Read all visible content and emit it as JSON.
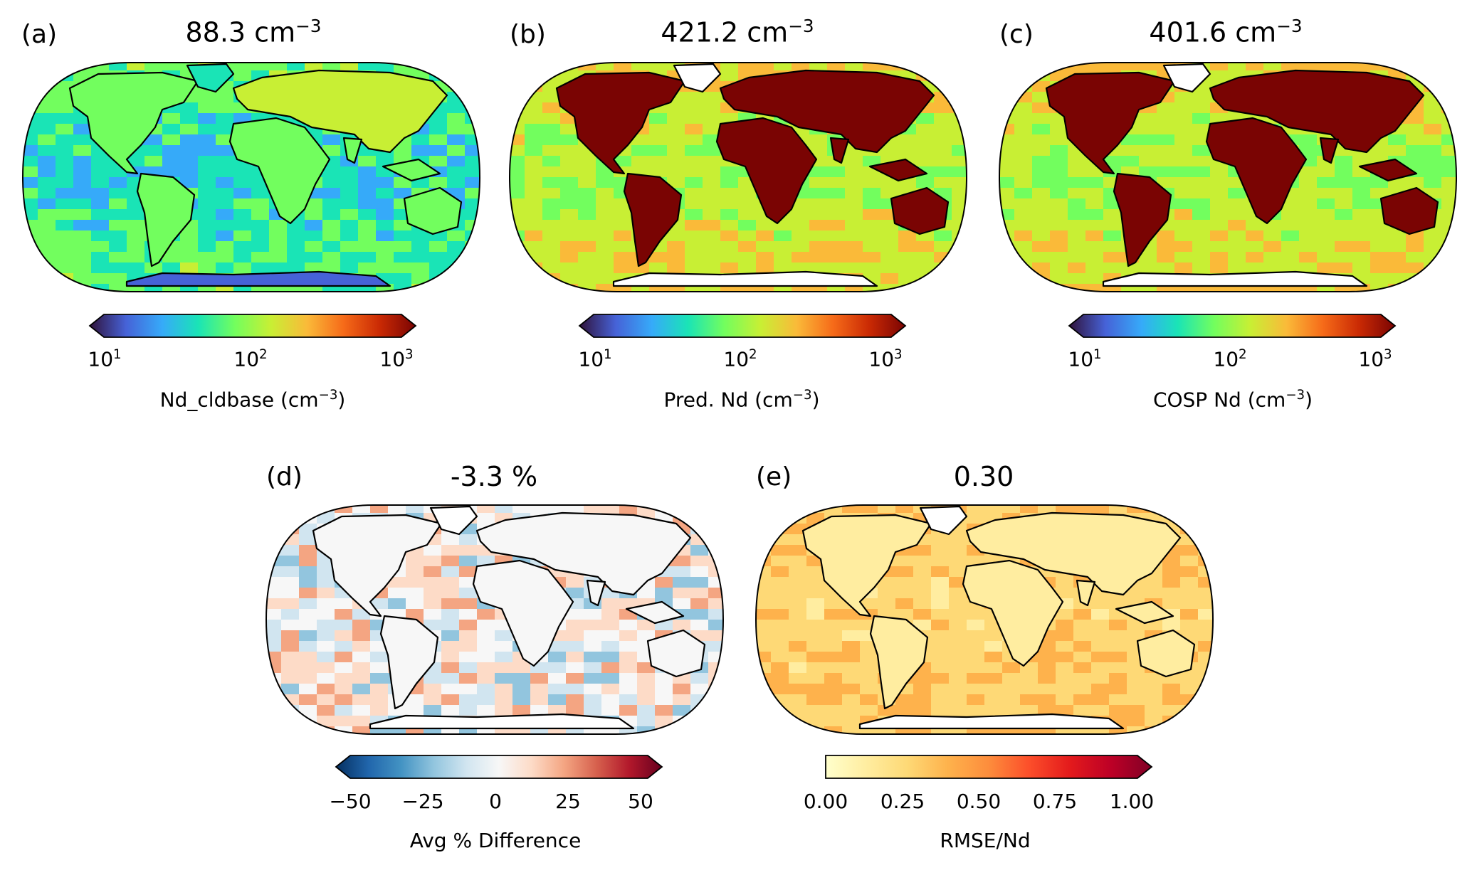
{
  "panels": [
    {
      "label": "(a)",
      "title": "88.3 cm",
      "title_sup": "−3",
      "colorbar_label": "Nd_cldbase (cm",
      "colorbar_label_sup": "−3",
      "colorbar_label_end": ")",
      "ticks": [
        "10",
        "10",
        "10"
      ],
      "tick_sups": [
        "1",
        "2",
        "3"
      ],
      "colormap": "turbo",
      "scale": "log"
    },
    {
      "label": "(b)",
      "title": "421.2 cm",
      "title_sup": "−3",
      "colorbar_label": "Pred. Nd (cm",
      "colorbar_label_sup": "−3",
      "colorbar_label_end": ")",
      "ticks": [
        "10",
        "10",
        "10"
      ],
      "tick_sups": [
        "1",
        "2",
        "3"
      ],
      "colormap": "turbo",
      "scale": "log"
    },
    {
      "label": "(c)",
      "title": "401.6 cm",
      "title_sup": "−3",
      "colorbar_label": "COSP Nd (cm",
      "colorbar_label_sup": "−3",
      "colorbar_label_end": ")",
      "ticks": [
        "10",
        "10",
        "10"
      ],
      "tick_sups": [
        "1",
        "2",
        "3"
      ],
      "colormap": "turbo",
      "scale": "log"
    },
    {
      "label": "(d)",
      "title": "-3.3 %",
      "colorbar_label": "Avg % Difference",
      "ticks": [
        "−50",
        "−25",
        "0",
        "25",
        "50"
      ],
      "colormap": "RdBu_r",
      "range": [
        -50,
        50
      ]
    },
    {
      "label": "(e)",
      "title": "0.30",
      "colorbar_label": "RMSE/Nd",
      "ticks": [
        "0.00",
        "0.25",
        "0.50",
        "0.75",
        "1.00"
      ],
      "colormap": "YlOrRd",
      "range": [
        0,
        1
      ]
    }
  ],
  "colors": {
    "turbo": [
      "#30123b",
      "#4662d7",
      "#36aaf9",
      "#1ae4b6",
      "#72fe5e",
      "#c8ef34",
      "#faba39",
      "#f66b19",
      "#ca2a04",
      "#7a0403"
    ],
    "RdBu_r": [
      "#053061",
      "#2166ac",
      "#4393c3",
      "#92c5de",
      "#d1e5f0",
      "#f7f7f7",
      "#fddbc7",
      "#f4a582",
      "#d6604d",
      "#b2182b",
      "#67001f"
    ],
    "YlOrRd": [
      "#ffffcc",
      "#ffeda0",
      "#fed976",
      "#feb24c",
      "#fd8d3c",
      "#fc4e2a",
      "#e31a1c",
      "#bd0026",
      "#800026"
    ]
  }
}
